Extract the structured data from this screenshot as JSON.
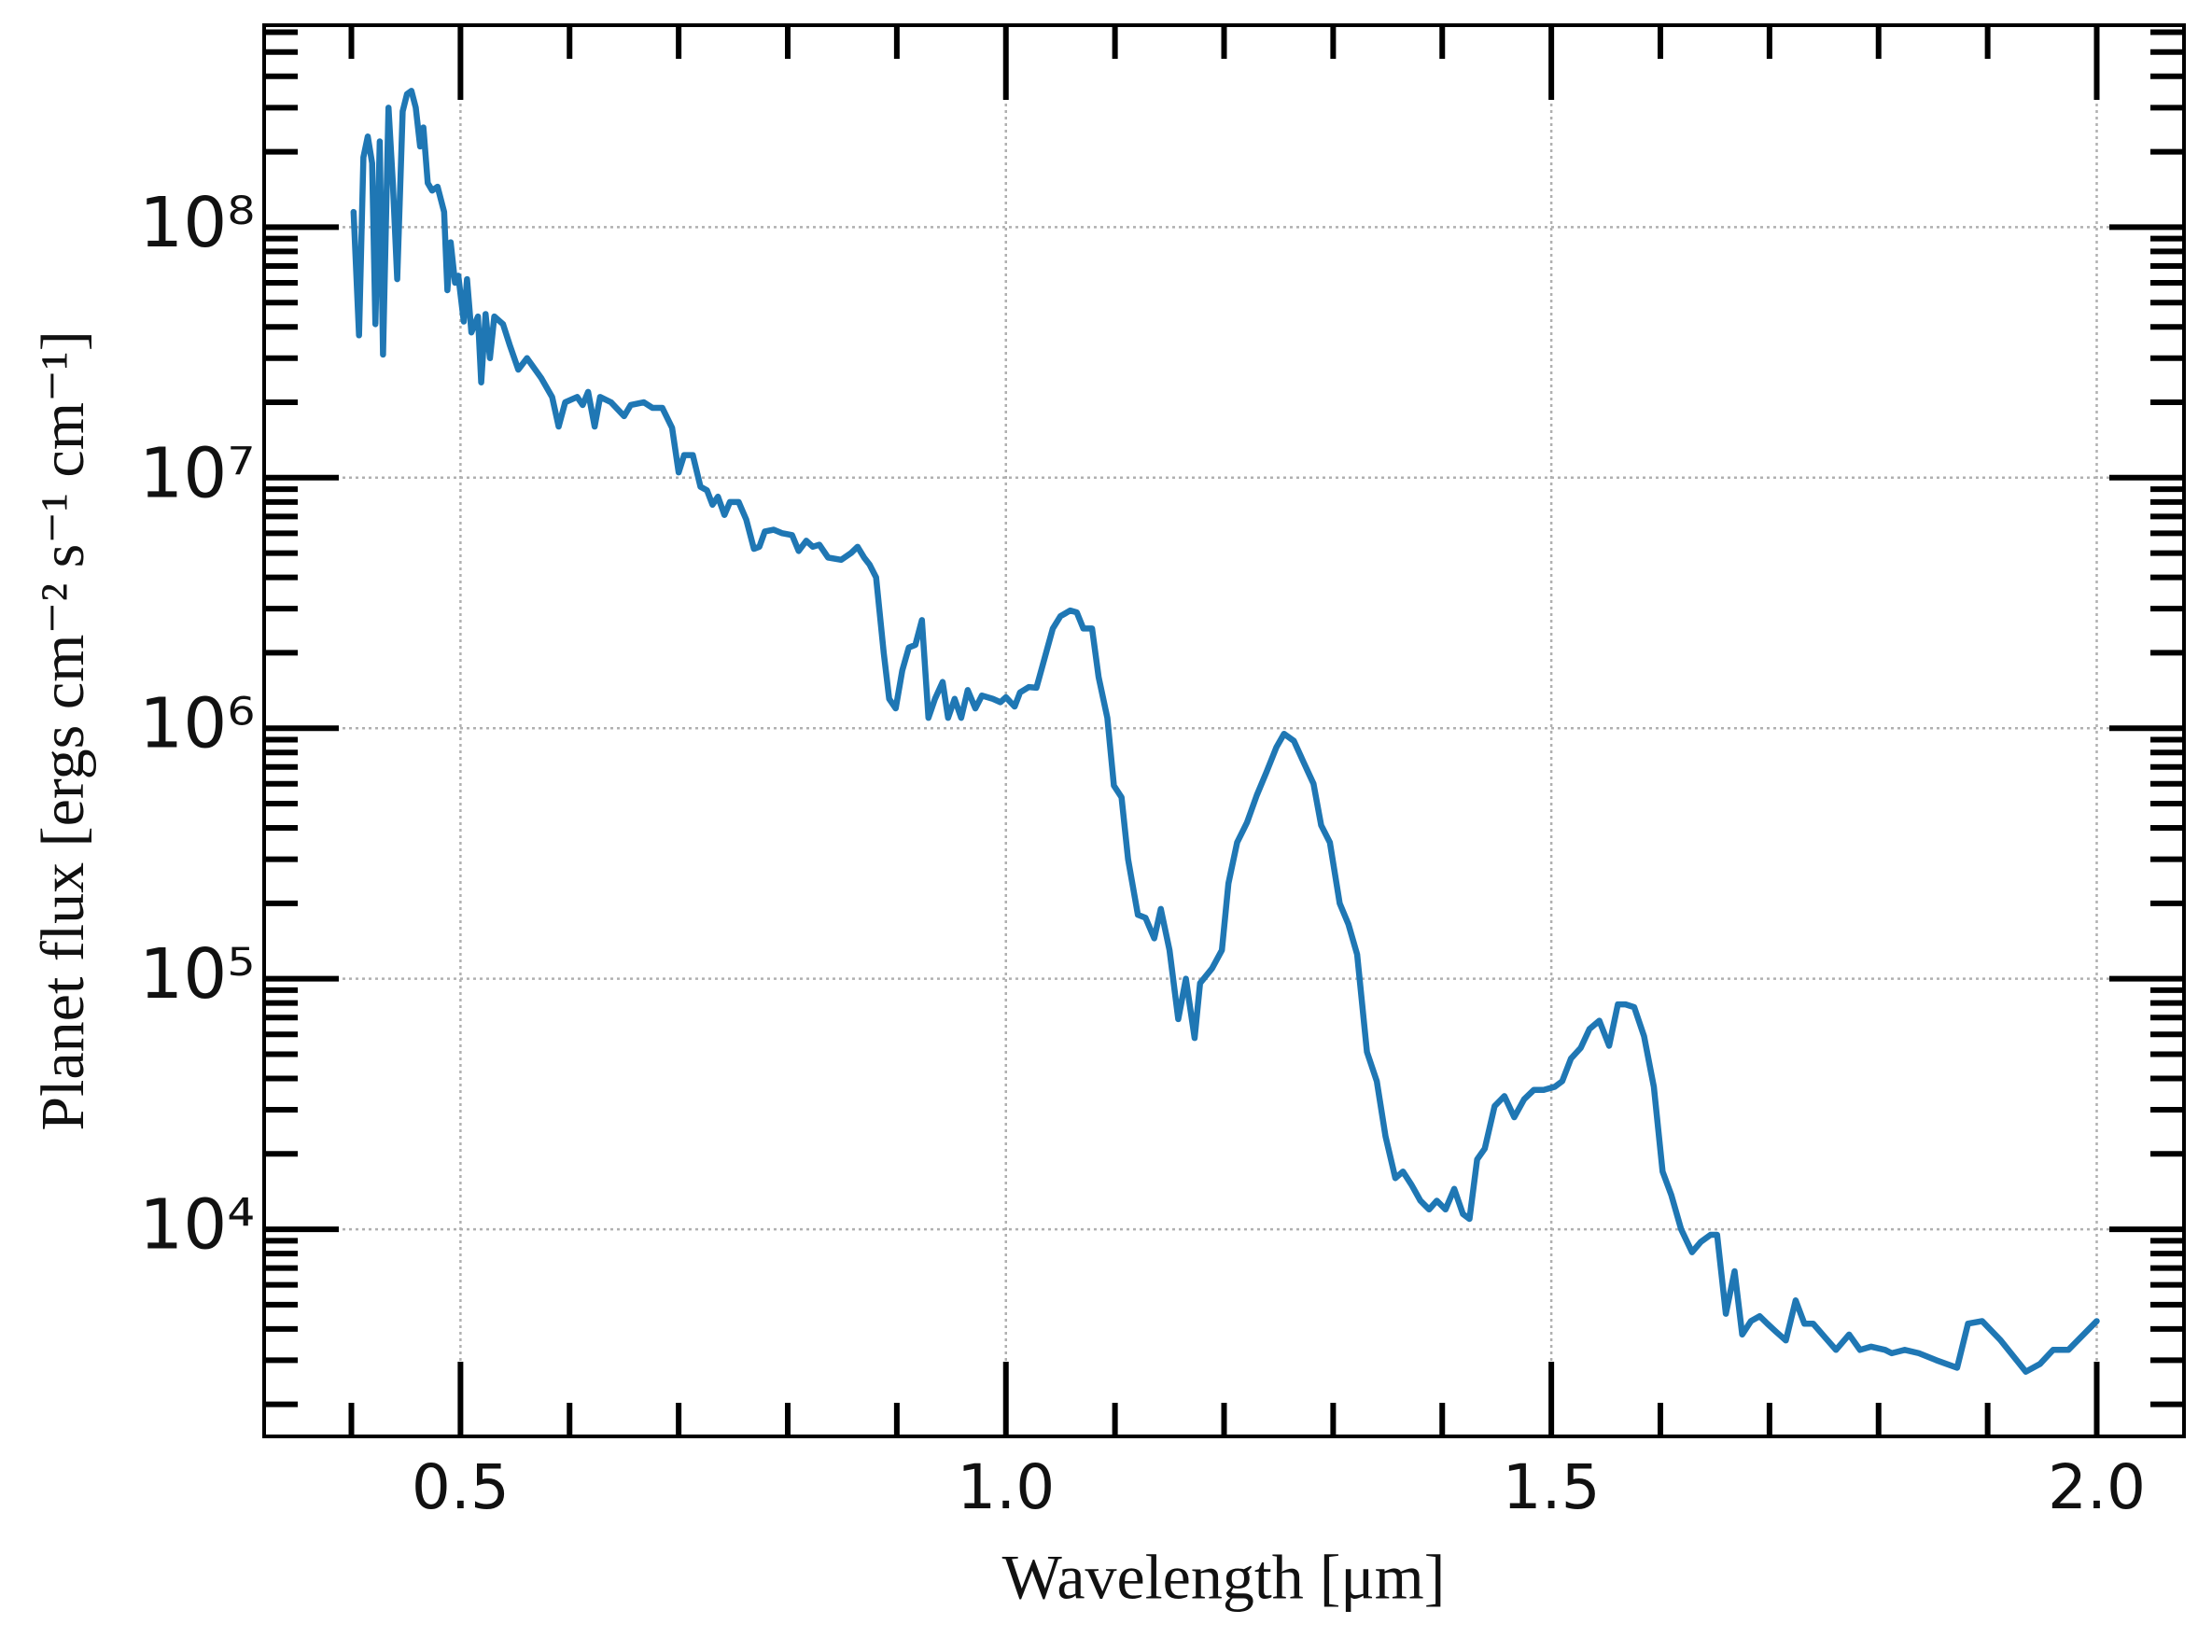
{
  "chart_data": {
    "type": "line",
    "xlabel": "Wavelength [μm]",
    "ylabel": "Planet flux [ergs cm⁻² s⁻¹ cm⁻¹]",
    "color": "#1f77b4",
    "log_y": true,
    "grid": true,
    "xlim": [
      0.32,
      2.08
    ],
    "ylim": [
      1490,
      640000000
    ],
    "xticks": [
      0.5,
      {
        "value": 1.0,
        "label": "1.0"
      },
      1.5,
      {
        "value": 2.0,
        "label": "2.0"
      }
    ],
    "xminorticks": [
      0.4,
      0.6,
      0.7,
      0.8,
      0.9,
      1.1,
      1.2,
      1.3,
      1.4,
      1.6,
      1.7,
      1.8,
      1.9
    ],
    "yticks": [
      {
        "value": 10000,
        "label": "10⁴"
      },
      {
        "value": 100000,
        "label": "10⁵"
      },
      {
        "value": 1000000,
        "label": "10⁶"
      },
      {
        "value": 10000000,
        "label": "10⁷"
      },
      {
        "value": 100000000,
        "label": "10⁸"
      }
    ],
    "yminorticks": [
      2000,
      3000,
      4000,
      5000,
      6000,
      7000,
      8000,
      9000,
      20000,
      30000,
      40000,
      50000,
      60000,
      70000,
      80000,
      90000,
      200000,
      300000,
      400000,
      500000,
      600000,
      700000,
      800000,
      900000,
      2000000,
      3000000,
      4000000,
      5000000,
      6000000,
      7000000,
      8000000,
      9000000,
      20000000,
      30000000,
      40000000,
      50000000,
      60000000,
      70000000,
      80000000,
      90000000,
      200000000,
      300000000,
      400000000,
      500000000,
      600000000
    ],
    "x": [
      0.402,
      0.407,
      0.411,
      0.415,
      0.419,
      0.422,
      0.426,
      0.429,
      0.434,
      0.438,
      0.442,
      0.447,
      0.451,
      0.455,
      0.459,
      0.463,
      0.466,
      0.47,
      0.474,
      0.479,
      0.485,
      0.488,
      0.491,
      0.495,
      0.498,
      0.503,
      0.506,
      0.51,
      0.516,
      0.519,
      0.523,
      0.527,
      0.531,
      0.539,
      0.545,
      0.553,
      0.561,
      0.574,
      0.584,
      0.59,
      0.596,
      0.607,
      0.612,
      0.617,
      0.623,
      0.628,
      0.638,
      0.65,
      0.656,
      0.668,
      0.676,
      0.685,
      0.694,
      0.7,
      0.705,
      0.713,
      0.72,
      0.726,
      0.731,
      0.736,
      0.742,
      0.747,
      0.755,
      0.762,
      0.769,
      0.774,
      0.779,
      0.787,
      0.795,
      0.804,
      0.81,
      0.817,
      0.823,
      0.829,
      0.837,
      0.849,
      0.858,
      0.864,
      0.87,
      0.875,
      0.881,
      0.888,
      0.893,
      0.899,
      0.905,
      0.911,
      0.917,
      0.923,
      0.929,
      0.935,
      0.942,
      0.947,
      0.953,
      0.959,
      0.965,
      0.972,
      0.978,
      0.988,
      0.995,
      1.0,
      1.008,
      1.013,
      1.021,
      1.028,
      1.036,
      1.043,
      1.05,
      1.059,
      1.065,
      1.071,
      1.079,
      1.085,
      1.093,
      1.099,
      1.106,
      1.112,
      1.121,
      1.128,
      1.136,
      1.142,
      1.15,
      1.158,
      1.165,
      1.173,
      1.178,
      1.189,
      1.198,
      1.204,
      1.212,
      1.221,
      1.23,
      1.239,
      1.248,
      1.255,
      1.264,
      1.273,
      1.282,
      1.289,
      1.297,
      1.306,
      1.314,
      1.322,
      1.331,
      1.34,
      1.348,
      1.357,
      1.364,
      1.372,
      1.38,
      1.388,
      1.395,
      1.403,
      1.411,
      1.419,
      1.425,
      1.432,
      1.439,
      1.448,
      1.457,
      1.466,
      1.475,
      1.484,
      1.493,
      1.503,
      1.51,
      1.518,
      1.527,
      1.535,
      1.544,
      1.553,
      1.561,
      1.568,
      1.576,
      1.585,
      1.594,
      1.602,
      1.61,
      1.619,
      1.629,
      1.637,
      1.646,
      1.652,
      1.66,
      1.668,
      1.675,
      1.683,
      1.691,
      1.698,
      1.706,
      1.715,
      1.724,
      1.732,
      1.74,
      1.751,
      1.761,
      1.773,
      1.783,
      1.793,
      1.806,
      1.812,
      1.824,
      1.837,
      1.853,
      1.872,
      1.882,
      1.895,
      1.912,
      1.935,
      1.948,
      1.96,
      1.974,
      2.0
    ],
    "values": [
      115000000,
      37000000,
      190000000,
      230000000,
      180000000,
      41000000,
      220000000,
      31000000,
      300000000,
      150000000,
      62000000,
      290000000,
      340000000,
      350000000,
      300000000,
      210000000,
      250000000,
      150000000,
      140000000,
      145000000,
      115000000,
      56000000,
      87000000,
      60000000,
      64000000,
      42000000,
      62000000,
      38000000,
      44000000,
      24000000,
      45000000,
      30000000,
      44000000,
      41000000,
      34000000,
      27000000,
      30000000,
      25000000,
      21000000,
      16000000,
      20000000,
      21000000,
      19500000,
      22000000,
      16000000,
      21000000,
      20000000,
      17600000,
      19500000,
      20000000,
      19000000,
      19000000,
      15800000,
      10500000,
      12300000,
      12300000,
      9200000,
      8900000,
      7800000,
      8400000,
      7100000,
      8000000,
      8000000,
      6800000,
      5200000,
      5300000,
      6100000,
      6200000,
      6000000,
      5900000,
      5100000,
      5600000,
      5300000,
      5400000,
      4800000,
      4700000,
      5000000,
      5300000,
      4800000,
      4500000,
      4000000,
      2000000,
      1310000,
      1200000,
      1700000,
      2100000,
      2150000,
      2700000,
      1100000,
      1310000,
      1530000,
      1100000,
      1310000,
      1100000,
      1420000,
      1200000,
      1350000,
      1310000,
      1270000,
      1330000,
      1220000,
      1390000,
      1460000,
      1450000,
      1940000,
      2500000,
      2800000,
      2950000,
      2900000,
      2500000,
      2500000,
      1600000,
      1100000,
      590000,
      530000,
      300000,
      180000,
      175000,
      145000,
      190000,
      130000,
      69000,
      100000,
      58000,
      96000,
      110000,
      130000,
      240000,
      350000,
      420000,
      540000,
      670000,
      840000,
      950000,
      890000,
      730000,
      600000,
      410000,
      350000,
      200000,
      165000,
      125000,
      51000,
      39000,
      23500,
      16000,
      17000,
      15000,
      13000,
      12000,
      13000,
      12000,
      14500,
      11500,
      11000,
      19000,
      21000,
      31000,
      34000,
      28000,
      33000,
      36000,
      36000,
      37000,
      39000,
      48000,
      53000,
      63000,
      68000,
      54000,
      79000,
      79000,
      77000,
      59000,
      37000,
      17000,
      13700,
      10000,
      8100,
      8900,
      9500,
      9500,
      4600,
      6800,
      3800,
      4300,
      4500,
      4200,
      3900,
      3600,
      5200,
      4200,
      4200,
      3700,
      3300,
      3800,
      3300,
      3400,
      3300,
      3200,
      3300,
      3200,
      3000,
      2800,
      4200,
      4300,
      3600,
      2700,
      2900,
      3300,
      3300,
      4300
    ]
  }
}
